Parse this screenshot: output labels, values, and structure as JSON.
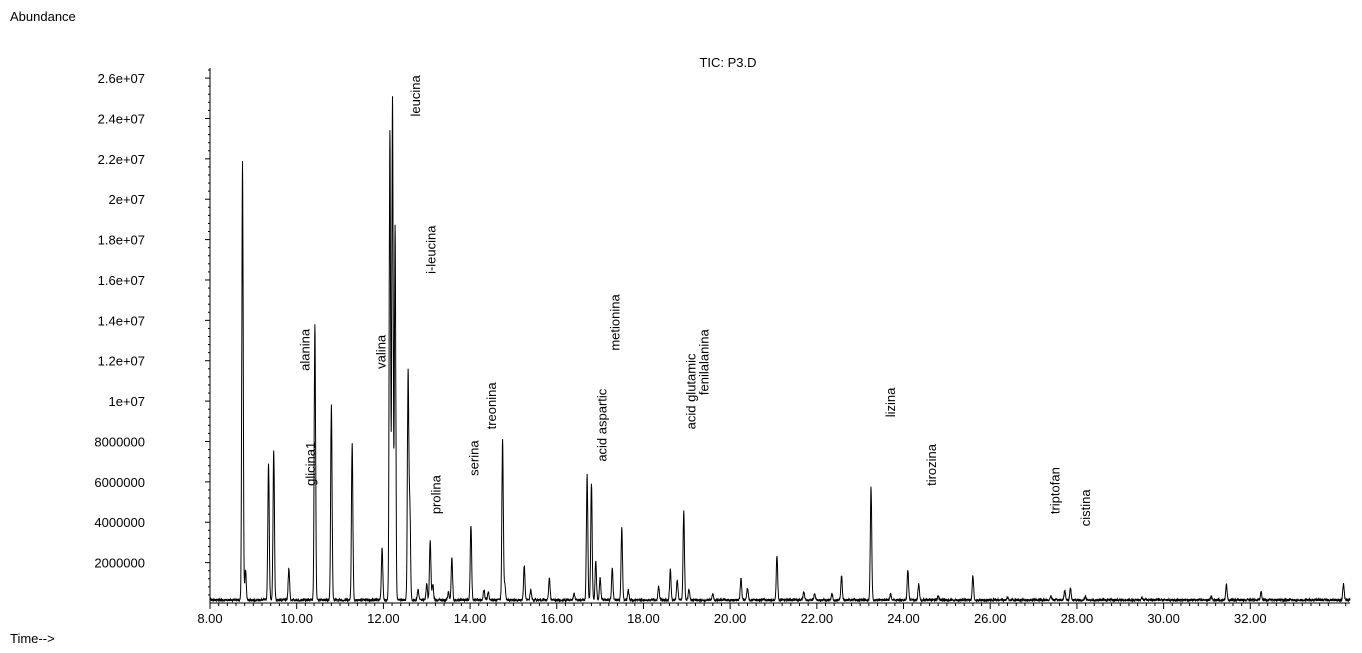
{
  "chart_data": {
    "type": "line",
    "title": "TIC: P3.D",
    "ylabel": "Abundance",
    "xlabel": "Time-->",
    "xlim": [
      8.0,
      34.3
    ],
    "ylim": [
      0,
      26500000
    ],
    "x_ticks": [
      8.0,
      10.0,
      12.0,
      14.0,
      16.0,
      18.0,
      20.0,
      22.0,
      24.0,
      26.0,
      28.0,
      30.0,
      32.0
    ],
    "x_tick_labels": [
      "8.00",
      "10.00",
      "12.00",
      "14.00",
      "16.00",
      "18.00",
      "20.00",
      "22.00",
      "24.00",
      "26.00",
      "28.00",
      "30.00",
      "32.00"
    ],
    "y_ticks": [
      2000000,
      4000000,
      6000000,
      8000000,
      10000000,
      12000000,
      14000000,
      16000000,
      18000000,
      20000000,
      22000000,
      24000000,
      26000000
    ],
    "y_tick_labels": [
      "2000000",
      "4000000",
      "6000000",
      "8000000",
      "1e+07",
      "1.2e+07",
      "1.4e+07",
      "1.6e+07",
      "1.8e+07",
      "2e+07",
      "2.2e+07",
      "2.4e+07",
      "2.6e+07"
    ],
    "baseline": 150000,
    "peaks": [
      [
        8.75,
        21700000
      ],
      [
        8.82,
        1500000
      ],
      [
        9.35,
        6800000
      ],
      [
        9.47,
        7400000
      ],
      [
        9.82,
        1600000
      ],
      [
        10.42,
        13700000
      ],
      [
        10.8,
        9700000
      ],
      [
        11.28,
        7800000
      ],
      [
        11.97,
        2600000
      ],
      [
        12.15,
        23300000
      ],
      [
        12.21,
        24900000
      ],
      [
        12.27,
        18500000
      ],
      [
        12.57,
        11300000
      ],
      [
        12.61,
        4600000
      ],
      [
        12.8,
        500000
      ],
      [
        13.0,
        800000
      ],
      [
        13.08,
        3000000
      ],
      [
        13.14,
        800000
      ],
      [
        13.5,
        400000
      ],
      [
        13.58,
        2100000
      ],
      [
        14.02,
        3700000
      ],
      [
        14.32,
        500000
      ],
      [
        14.42,
        400000
      ],
      [
        14.75,
        8000000
      ],
      [
        14.8,
        800000
      ],
      [
        15.25,
        1700000
      ],
      [
        15.4,
        500000
      ],
      [
        15.83,
        1100000
      ],
      [
        16.4,
        300000
      ],
      [
        16.7,
        6200000
      ],
      [
        16.8,
        5800000
      ],
      [
        16.9,
        1900000
      ],
      [
        17.0,
        1100000
      ],
      [
        17.28,
        1600000
      ],
      [
        17.5,
        3600000
      ],
      [
        17.65,
        500000
      ],
      [
        18.35,
        700000
      ],
      [
        18.62,
        1500000
      ],
      [
        18.78,
        1000000
      ],
      [
        18.93,
        4400000
      ],
      [
        19.05,
        500000
      ],
      [
        19.6,
        300000
      ],
      [
        20.25,
        1100000
      ],
      [
        20.4,
        600000
      ],
      [
        21.08,
        2200000
      ],
      [
        21.7,
        400000
      ],
      [
        21.95,
        300000
      ],
      [
        22.35,
        300000
      ],
      [
        22.57,
        1200000
      ],
      [
        23.25,
        5600000
      ],
      [
        23.7,
        300000
      ],
      [
        24.1,
        1500000
      ],
      [
        24.35,
        800000
      ],
      [
        24.8,
        200000
      ],
      [
        25.6,
        1200000
      ],
      [
        26.4,
        150000
      ],
      [
        27.4,
        200000
      ],
      [
        27.72,
        450000
      ],
      [
        27.85,
        600000
      ],
      [
        28.2,
        150000
      ],
      [
        29.5,
        100000
      ],
      [
        31.1,
        150000
      ],
      [
        31.45,
        750000
      ],
      [
        32.25,
        400000
      ],
      [
        34.15,
        800000
      ]
    ],
    "annotations": [
      {
        "text": "alanina",
        "x": 10.3,
        "y": 11500000
      },
      {
        "text": "glicina1",
        "x": 10.42,
        "y": 5800000
      },
      {
        "text": "valina",
        "x": 12.05,
        "y": 11600000
      },
      {
        "text": "leucina",
        "x": 12.85,
        "y": 24100000
      },
      {
        "text": "i-leucina",
        "x": 13.2,
        "y": 16300000
      },
      {
        "text": "prolina",
        "x": 13.32,
        "y": 4400000
      },
      {
        "text": "serina",
        "x": 14.2,
        "y": 6300000
      },
      {
        "text": "treonina",
        "x": 14.6,
        "y": 8600000
      },
      {
        "text": "acid aspartic",
        "x": 17.15,
        "y": 7000000
      },
      {
        "text": "metionina",
        "x": 17.45,
        "y": 12500000
      },
      {
        "text": "acid glutamic",
        "x": 19.2,
        "y": 8600000
      },
      {
        "text": "fenilalanina",
        "x": 19.5,
        "y": 10300000
      },
      {
        "text": "lizina",
        "x": 23.8,
        "y": 9200000
      },
      {
        "text": "tirozina",
        "x": 24.75,
        "y": 5800000
      },
      {
        "text": "triptofan",
        "x": 27.6,
        "y": 4400000
      },
      {
        "text": "cistina",
        "x": 28.3,
        "y": 3800000
      }
    ]
  }
}
